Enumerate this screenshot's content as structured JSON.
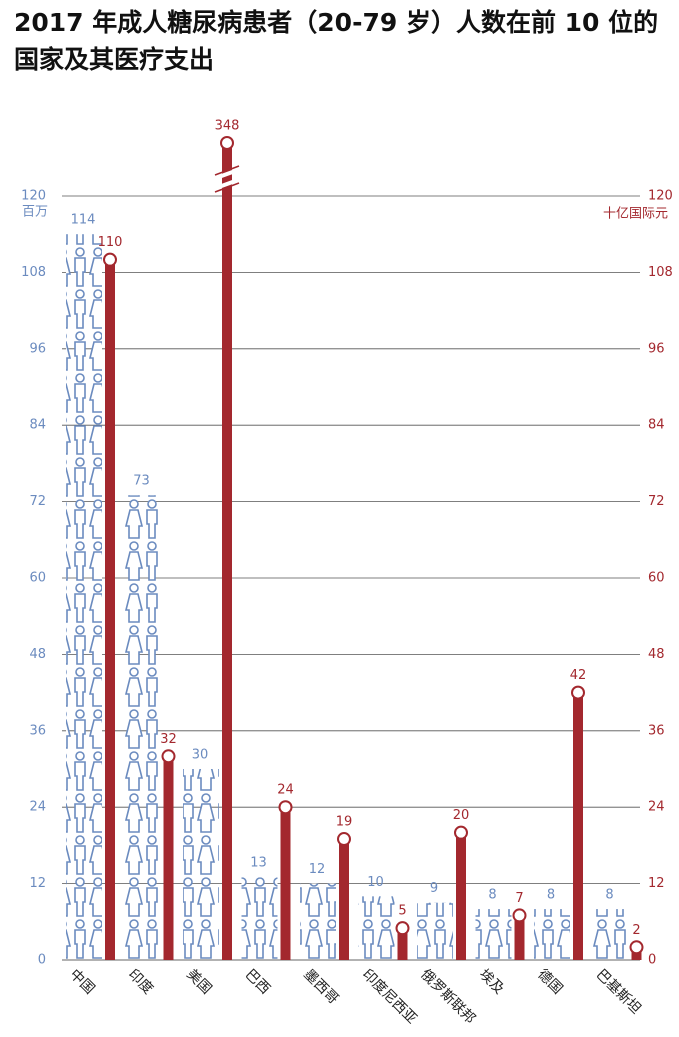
{
  "chart_data": {
    "type": "bar",
    "title": "2017 年成人糖尿病患者（20-79 岁）人数在前 10 位的国家及其医疗支出",
    "y_label": "百万",
    "y2_label": "十亿国际元",
    "categories": [
      "中国",
      "印度",
      "美国",
      "巴西",
      "墨西哥",
      "印度尼西亚",
      "俄罗斯联邦",
      "埃及",
      "德国",
      "巴基斯坦"
    ],
    "series": [
      {
        "color": "#6b8bbf",
        "values": [
          114,
          73,
          30,
          13,
          12,
          10,
          9,
          8,
          8,
          8
        ]
      },
      {
        "color": "#a3282e",
        "axis": "y2",
        "values": [
          110,
          32,
          348,
          24,
          19,
          5,
          20,
          7,
          42,
          2
        ]
      }
    ],
    "ylim": [
      0,
      120
    ],
    "yticks": [
      0,
      12,
      24,
      36,
      48,
      60,
      72,
      84,
      96,
      108,
      120
    ],
    "y2lim": [
      0,
      120
    ],
    "y2ticks": [
      0,
      12,
      24,
      36,
      48,
      60,
      72,
      84,
      96,
      108,
      120
    ],
    "grid": true,
    "axis_break": true
  }
}
